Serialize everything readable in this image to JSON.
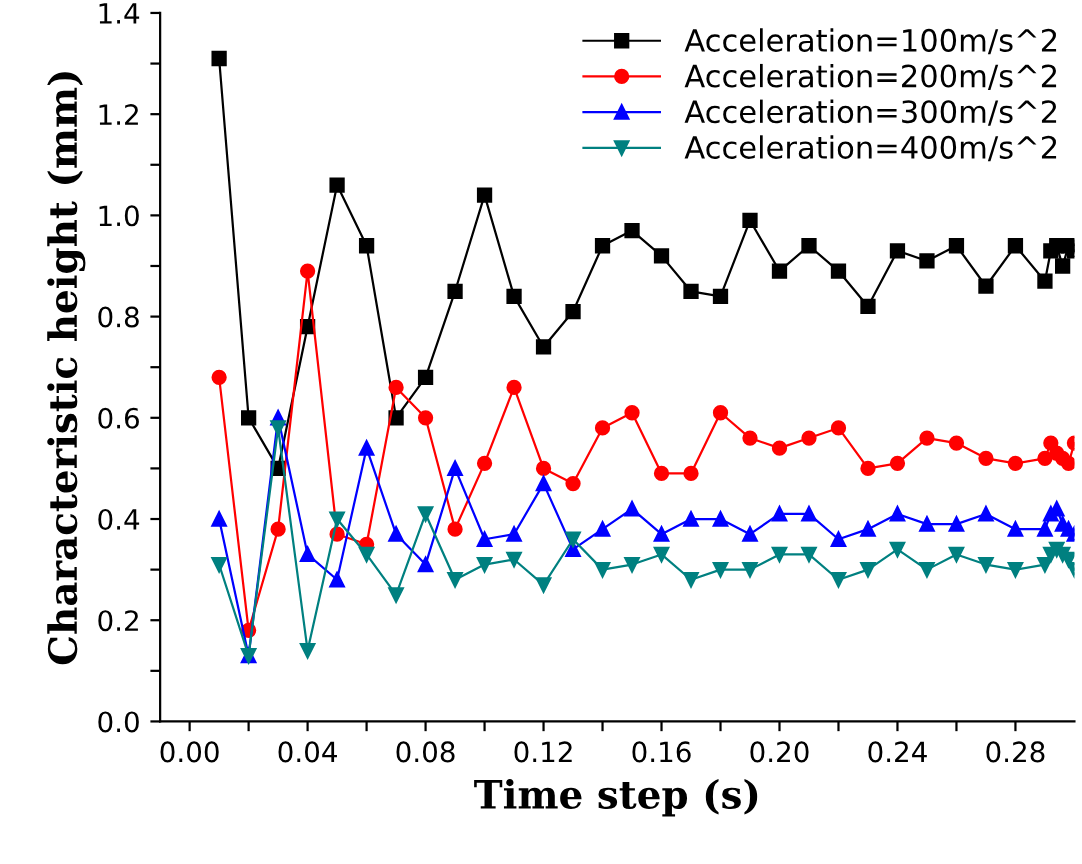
{
  "chart_data": {
    "type": "line",
    "xlabel": "Time step (s)",
    "ylabel": "Characteristic height (mm)",
    "x": [
      0.01,
      0.02,
      0.03,
      0.04,
      0.05,
      0.06,
      0.07,
      0.08,
      0.09,
      0.1,
      0.11,
      0.12,
      0.13,
      0.14,
      0.15,
      0.16,
      0.17,
      0.18,
      0.19,
      0.2,
      0.21,
      0.22,
      0.23,
      0.24,
      0.25,
      0.26,
      0.27,
      0.28,
      0.29,
      0.292,
      0.294,
      0.296,
      0.298,
      0.3
    ],
    "series": [
      {
        "name": "Acceleration=100m/s^2",
        "color": "#000000",
        "marker": "square",
        "values": [
          1.31,
          0.6,
          0.5,
          0.78,
          1.06,
          0.94,
          0.6,
          0.68,
          0.85,
          1.04,
          0.84,
          0.74,
          0.81,
          0.94,
          0.97,
          0.92,
          0.85,
          0.84,
          0.99,
          0.89,
          0.94,
          0.89,
          0.82,
          0.93,
          0.91,
          0.94,
          0.86,
          0.94,
          0.87,
          0.93,
          0.94,
          0.9,
          0.94,
          0.93
        ]
      },
      {
        "name": "Acceleration=200m/s^2",
        "color": "#ff0000",
        "marker": "circle",
        "values": [
          0.68,
          0.18,
          0.38,
          0.89,
          0.37,
          0.35,
          0.66,
          0.6,
          0.38,
          0.51,
          0.66,
          0.5,
          0.47,
          0.58,
          0.61,
          0.49,
          0.49,
          0.61,
          0.56,
          0.54,
          0.56,
          0.58,
          0.5,
          0.51,
          0.56,
          0.55,
          0.52,
          0.51,
          0.52,
          0.55,
          0.53,
          0.52,
          0.51,
          0.55
        ]
      },
      {
        "name": "Acceleration=300m/s^2",
        "color": "#0000ff",
        "marker": "triangle",
        "values": [
          0.4,
          0.13,
          0.6,
          0.33,
          0.28,
          0.54,
          0.37,
          0.31,
          0.5,
          0.36,
          0.37,
          0.47,
          0.34,
          0.38,
          0.42,
          0.37,
          0.4,
          0.4,
          0.37,
          0.41,
          0.41,
          0.36,
          0.38,
          0.41,
          0.39,
          0.39,
          0.41,
          0.38,
          0.38,
          0.41,
          0.42,
          0.39,
          0.38,
          0.37
        ]
      },
      {
        "name": "Acceleration=400m/s^2",
        "color": "#008080",
        "marker": "triangle_down",
        "values": [
          0.31,
          0.13,
          0.58,
          0.14,
          0.4,
          0.33,
          0.25,
          0.41,
          0.28,
          0.31,
          0.32,
          0.27,
          0.36,
          0.3,
          0.31,
          0.33,
          0.28,
          0.3,
          0.3,
          0.33,
          0.33,
          0.28,
          0.3,
          0.34,
          0.3,
          0.33,
          0.31,
          0.3,
          0.31,
          0.33,
          0.34,
          0.33,
          0.32,
          0.3
        ]
      }
    ],
    "xlim": [
      -0.01,
      0.3
    ],
    "xticks": [
      {
        "value": 0.0,
        "label": "0.00"
      },
      {
        "value": 0.02,
        "label": null
      },
      {
        "value": 0.04,
        "label": "0.04"
      },
      {
        "value": 0.06,
        "label": null
      },
      {
        "value": 0.08,
        "label": "0.08"
      },
      {
        "value": 0.1,
        "label": null
      },
      {
        "value": 0.12,
        "label": "0.12"
      },
      {
        "value": 0.14,
        "label": null
      },
      {
        "value": 0.16,
        "label": "0.16"
      },
      {
        "value": 0.18,
        "label": null
      },
      {
        "value": 0.2,
        "label": "0.20"
      },
      {
        "value": 0.22,
        "label": null
      },
      {
        "value": 0.24,
        "label": "0.24"
      },
      {
        "value": 0.26,
        "label": null
      },
      {
        "value": 0.28,
        "label": "0.28"
      }
    ],
    "ylim": [
      0,
      1.4
    ],
    "yticks": [
      {
        "value": 0,
        "label": "0.0"
      },
      {
        "value": 0.1,
        "label": null
      },
      {
        "value": 0.2,
        "label": "0.2"
      },
      {
        "value": 0.3,
        "label": null
      },
      {
        "value": 0.4,
        "label": "0.4"
      },
      {
        "value": 0.5,
        "label": null
      },
      {
        "value": 0.6,
        "label": "0.6"
      },
      {
        "value": 0.7,
        "label": null
      },
      {
        "value": 0.8,
        "label": "0.8"
      },
      {
        "value": 0.9,
        "label": null
      },
      {
        "value": 1.0,
        "label": "1.0"
      },
      {
        "value": 1.1,
        "label": null
      },
      {
        "value": 1.2,
        "label": "1.2"
      },
      {
        "value": 1.3,
        "label": null
      },
      {
        "value": 1.4,
        "label": "1.4"
      }
    ],
    "grid": false,
    "legend": "top right",
    "line_style": "solid"
  }
}
